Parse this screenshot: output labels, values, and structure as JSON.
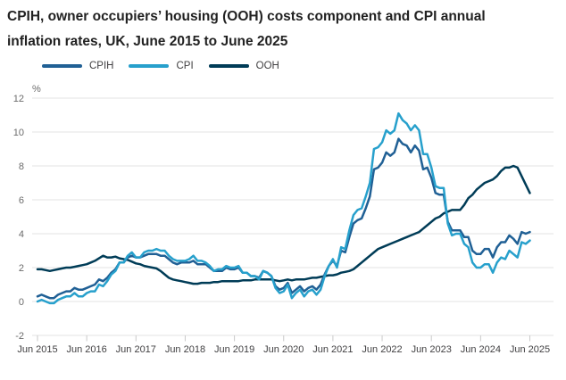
{
  "title": {
    "line1": "CPIH, owner occupiers’ housing (OOH) costs component and CPI annual",
    "line2": "inflation rates, UK, June 2015 to June 2025"
  },
  "chart_data": {
    "type": "line",
    "title": "CPIH, owner occupiers’ housing (OOH) costs component and CPI annual inflation rates, UK, June 2015 to June 2025",
    "unit_label": "%",
    "xlabel": "",
    "ylabel": "%",
    "ylim": [
      -2,
      12
    ],
    "y_ticks": [
      12,
      10,
      8,
      6,
      4,
      2,
      0,
      -2
    ],
    "grid": true,
    "legend_position": "top-left",
    "x_frequency": "monthly",
    "x_range": [
      "Jun 2015",
      "Jun 2025"
    ],
    "x_tick_labels": [
      "Jun 2015",
      "Jun 2016",
      "Jun 2017",
      "Jun 2018",
      "Jun 2019",
      "Jun 2020",
      "Jun 2021",
      "Jun 2022",
      "Jun 2023",
      "Jun 2024",
      "Jun 2025"
    ],
    "colors": {
      "cpih": "#206095",
      "cpi": "#27A0CC",
      "ooh": "#003C57",
      "gridline": "#e3e3e3",
      "tick": "#c9c9c9",
      "axis_text": "#414042",
      "y_text": "#6b6b6b"
    },
    "series": [
      {
        "name": "CPIH",
        "color": "#206095",
        "values": [
          0.3,
          0.4,
          0.3,
          0.2,
          0.2,
          0.4,
          0.5,
          0.6,
          0.6,
          0.8,
          0.7,
          0.7,
          0.8,
          0.9,
          1.0,
          1.3,
          1.2,
          1.4,
          1.7,
          1.9,
          2.3,
          2.3,
          2.6,
          2.7,
          2.6,
          2.6,
          2.7,
          2.8,
          2.8,
          2.8,
          2.7,
          2.7,
          2.5,
          2.3,
          2.2,
          2.3,
          2.3,
          2.3,
          2.4,
          2.2,
          2.2,
          2.2,
          2.0,
          1.8,
          1.8,
          1.8,
          2.0,
          1.9,
          1.9,
          2.0,
          1.7,
          1.7,
          1.5,
          1.5,
          1.4,
          1.8,
          1.7,
          1.5,
          0.9,
          0.7,
          0.8,
          1.1,
          0.5,
          0.7,
          0.9,
          0.6,
          0.8,
          0.9,
          0.7,
          1.0,
          1.6,
          2.1,
          2.4,
          2.1,
          3.0,
          2.9,
          3.8,
          4.6,
          4.8,
          4.9,
          5.5,
          6.2,
          7.8,
          7.9,
          8.2,
          8.8,
          8.6,
          8.8,
          9.6,
          9.3,
          9.2,
          8.8,
          9.2,
          8.9,
          7.8,
          7.9,
          7.3,
          6.4,
          6.3,
          6.3,
          4.7,
          4.2,
          4.2,
          4.2,
          3.8,
          3.8,
          3.0,
          2.8,
          2.8,
          3.1,
          3.1,
          2.6,
          3.2,
          3.5,
          3.5,
          3.9,
          3.7,
          3.4,
          4.1,
          4.0,
          4.1
        ]
      },
      {
        "name": "CPI",
        "color": "#27A0CC",
        "values": [
          0.0,
          0.1,
          0.0,
          -0.1,
          -0.1,
          0.1,
          0.2,
          0.3,
          0.3,
          0.5,
          0.3,
          0.3,
          0.5,
          0.6,
          0.6,
          1.0,
          0.9,
          1.2,
          1.6,
          1.8,
          2.3,
          2.3,
          2.7,
          2.9,
          2.6,
          2.6,
          2.9,
          3.0,
          3.0,
          3.1,
          3.0,
          3.0,
          2.7,
          2.5,
          2.4,
          2.4,
          2.4,
          2.5,
          2.7,
          2.4,
          2.4,
          2.3,
          2.1,
          1.8,
          1.9,
          1.9,
          2.1,
          2.0,
          2.0,
          2.1,
          1.7,
          1.7,
          1.5,
          1.5,
          1.3,
          1.8,
          1.7,
          1.5,
          0.8,
          0.5,
          0.6,
          1.0,
          0.2,
          0.5,
          0.7,
          0.3,
          0.6,
          0.7,
          0.4,
          0.7,
          1.5,
          2.1,
          2.5,
          2.0,
          3.2,
          3.1,
          4.2,
          5.1,
          5.4,
          5.5,
          6.2,
          7.0,
          9.0,
          9.1,
          9.4,
          10.1,
          9.9,
          10.1,
          11.1,
          10.7,
          10.5,
          10.1,
          10.4,
          10.1,
          8.7,
          8.7,
          7.9,
          6.8,
          6.7,
          6.7,
          4.6,
          3.9,
          4.0,
          4.0,
          3.4,
          3.2,
          2.3,
          2.0,
          2.0,
          2.2,
          2.2,
          1.7,
          2.3,
          2.6,
          2.5,
          3.0,
          2.8,
          2.6,
          3.5,
          3.4,
          3.6
        ]
      },
      {
        "name": "OOH",
        "color": "#003C57",
        "values": [
          1.9,
          1.9,
          1.85,
          1.8,
          1.85,
          1.9,
          1.95,
          2.0,
          2.0,
          2.05,
          2.1,
          2.15,
          2.2,
          2.3,
          2.4,
          2.55,
          2.7,
          2.6,
          2.6,
          2.65,
          2.55,
          2.5,
          2.45,
          2.35,
          2.25,
          2.2,
          2.1,
          2.05,
          2.0,
          1.95,
          1.8,
          1.6,
          1.4,
          1.3,
          1.25,
          1.2,
          1.15,
          1.1,
          1.05,
          1.05,
          1.1,
          1.1,
          1.1,
          1.15,
          1.15,
          1.2,
          1.2,
          1.2,
          1.2,
          1.2,
          1.25,
          1.25,
          1.25,
          1.3,
          1.3,
          1.3,
          1.3,
          1.3,
          1.25,
          1.2,
          1.25,
          1.3,
          1.25,
          1.3,
          1.3,
          1.3,
          1.35,
          1.4,
          1.4,
          1.45,
          1.5,
          1.55,
          1.55,
          1.6,
          1.7,
          1.75,
          1.8,
          1.9,
          2.1,
          2.3,
          2.5,
          2.7,
          2.9,
          3.1,
          3.2,
          3.3,
          3.4,
          3.5,
          3.6,
          3.7,
          3.8,
          3.9,
          4.0,
          4.1,
          4.3,
          4.5,
          4.7,
          4.9,
          5.0,
          5.2,
          5.3,
          5.4,
          5.4,
          5.4,
          5.7,
          6.1,
          6.3,
          6.6,
          6.8,
          7.0,
          7.1,
          7.2,
          7.4,
          7.7,
          7.9,
          7.9,
          8.0,
          7.9,
          7.4,
          6.9,
          6.4
        ]
      }
    ]
  }
}
